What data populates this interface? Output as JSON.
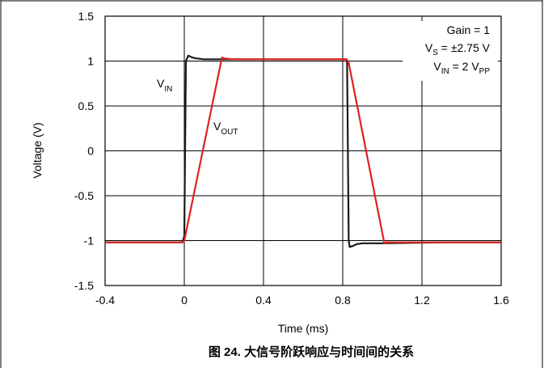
{
  "chart_data": {
    "type": "line",
    "title": "",
    "caption": "图 24. 大信号阶跃响应与时间间的关系",
    "xlabel": "Time (ms)",
    "ylabel": "Voltage (V)",
    "xlim": [
      -0.4,
      1.6
    ],
    "ylim": [
      -1.5,
      1.5
    ],
    "xticks": [
      -0.4,
      0,
      0.4,
      0.8,
      1.2,
      1.6
    ],
    "xtick_labels": [
      "-0.4",
      "0",
      "0.4",
      "0.8",
      "1.2",
      "1.6"
    ],
    "yticks": [
      -1.5,
      -1,
      -0.5,
      0,
      0.5,
      1,
      1.5
    ],
    "ytick_labels": [
      "-1.5",
      "-1",
      "-0.5",
      "0",
      "0.5",
      "1",
      "1.5"
    ],
    "grid": true,
    "annotations": {
      "gain": "Gain = 1",
      "vs_main": "V",
      "vs_sub": "S",
      "vs_rest": " = ±2.75 V",
      "vin_main": "V",
      "vin_sub": "IN",
      "vin_rest": " = 2 V",
      "vin_unit_sub": "PP",
      "label_vin_main": "V",
      "label_vin_sub": "IN",
      "label_vout_main": "V",
      "label_vout_sub": "OUT"
    },
    "series": [
      {
        "name": "VIN",
        "color": "#1a1a1a",
        "x": [
          -0.4,
          -0.01,
          0.0,
          0.008,
          0.02,
          0.04,
          0.06,
          0.1,
          0.3,
          0.6,
          0.8,
          0.82,
          0.822,
          0.83,
          0.835,
          0.85,
          0.87,
          0.9,
          1.0,
          1.3,
          1.6
        ],
        "y": [
          -1.02,
          -1.02,
          -0.95,
          1.0,
          1.06,
          1.04,
          1.03,
          1.02,
          1.02,
          1.02,
          1.02,
          1.02,
          0.98,
          -1.0,
          -1.07,
          -1.06,
          -1.04,
          -1.03,
          -1.03,
          -1.02,
          -1.02
        ]
      },
      {
        "name": "VOUT",
        "color": "#e02020",
        "x": [
          -0.4,
          -0.01,
          0.0,
          0.19,
          0.2,
          0.25,
          0.5,
          0.82,
          0.83,
          1.01,
          1.02,
          1.1,
          1.6
        ],
        "y": [
          -1.02,
          -1.02,
          -1.0,
          1.04,
          1.03,
          1.02,
          1.02,
          1.02,
          0.98,
          -1.03,
          -1.02,
          -1.02,
          -1.02
        ]
      }
    ]
  }
}
